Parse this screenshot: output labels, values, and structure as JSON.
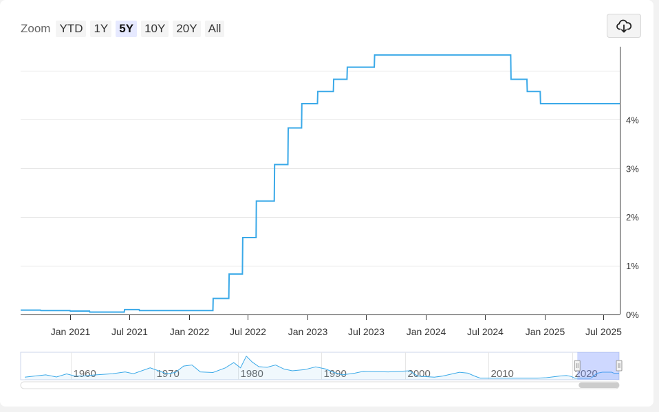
{
  "toolbar": {
    "zoom_label": "Zoom",
    "zoom_options": [
      "YTD",
      "1Y",
      "5Y",
      "10Y",
      "20Y",
      "All"
    ],
    "active_zoom": "5Y",
    "download_icon": "cloud-download-icon"
  },
  "chart_data": {
    "type": "line",
    "title": "",
    "xlabel": "",
    "ylabel": "",
    "x_tick_labels": [
      "Jan 2021",
      "Jul 2021",
      "Jan 2022",
      "Jul 2022",
      "Jan 2023",
      "Jul 2023",
      "Jan 2024",
      "Jul 2024",
      "Jan 2025",
      "Jul 2025"
    ],
    "y_tick_labels": [
      "0%",
      "1%",
      "2%",
      "3%",
      "4%"
    ],
    "ylim": [
      0,
      5.5
    ],
    "xlim": [
      "2020-08-01",
      "2025-08-20"
    ],
    "grid": true,
    "y_axis_side": "right",
    "line_color": "#3aa9e8",
    "series": [
      {
        "name": "",
        "points": [
          [
            "2020-08-01",
            0.09
          ],
          [
            "2020-10-01",
            0.09
          ],
          [
            "2020-10-02",
            0.08
          ],
          [
            "2020-12-31",
            0.08
          ],
          [
            "2021-01-01",
            0.07
          ],
          [
            "2021-03-01",
            0.07
          ],
          [
            "2021-03-02",
            0.05
          ],
          [
            "2021-06-16",
            0.05
          ],
          [
            "2021-06-17",
            0.1
          ],
          [
            "2021-08-01",
            0.1
          ],
          [
            "2021-08-02",
            0.08
          ],
          [
            "2022-03-16",
            0.08
          ],
          [
            "2022-03-17",
            0.33
          ],
          [
            "2022-05-04",
            0.33
          ],
          [
            "2022-05-05",
            0.83
          ],
          [
            "2022-06-15",
            0.83
          ],
          [
            "2022-06-16",
            1.58
          ],
          [
            "2022-07-27",
            1.58
          ],
          [
            "2022-07-28",
            2.33
          ],
          [
            "2022-09-21",
            2.33
          ],
          [
            "2022-09-22",
            3.08
          ],
          [
            "2022-11-02",
            3.08
          ],
          [
            "2022-11-03",
            3.83
          ],
          [
            "2022-12-14",
            3.83
          ],
          [
            "2022-12-15",
            4.33
          ],
          [
            "2023-02-01",
            4.33
          ],
          [
            "2023-02-02",
            4.58
          ],
          [
            "2023-03-22",
            4.58
          ],
          [
            "2023-03-23",
            4.83
          ],
          [
            "2023-05-03",
            4.83
          ],
          [
            "2023-05-04",
            5.08
          ],
          [
            "2023-07-26",
            5.08
          ],
          [
            "2023-07-27",
            5.33
          ],
          [
            "2024-09-18",
            5.33
          ],
          [
            "2024-09-19",
            4.83
          ],
          [
            "2024-11-07",
            4.83
          ],
          [
            "2024-11-08",
            4.58
          ],
          [
            "2024-12-18",
            4.58
          ],
          [
            "2024-12-19",
            4.33
          ],
          [
            "2025-08-20",
            4.33
          ]
        ]
      }
    ]
  },
  "navigator": {
    "year_labels": [
      "1960",
      "1970",
      "1980",
      "1990",
      "2000",
      "2010",
      "2020"
    ],
    "range_start_year": 1954,
    "range_end_year": 2025.6,
    "selected_start_year": 2020.6,
    "selected_end_year": 2025.6,
    "series": [
      [
        1954.5,
        1.0
      ],
      [
        1955.5,
        1.8
      ],
      [
        1957,
        3.0
      ],
      [
        1958.3,
        1.2
      ],
      [
        1959.5,
        3.8
      ],
      [
        1960.5,
        2.0
      ],
      [
        1961.5,
        2.0
      ],
      [
        1963,
        3.0
      ],
      [
        1965,
        4.0
      ],
      [
        1966.5,
        5.5
      ],
      [
        1967.5,
        4.0
      ],
      [
        1969.5,
        9.0
      ],
      [
        1970.5,
        6.5
      ],
      [
        1971.5,
        4.0
      ],
      [
        1972.5,
        5.0
      ],
      [
        1973.5,
        10.5
      ],
      [
        1974.5,
        11.5
      ],
      [
        1975.5,
        5.5
      ],
      [
        1977,
        5.0
      ],
      [
        1978.5,
        9.0
      ],
      [
        1979.5,
        13.5
      ],
      [
        1980.3,
        9.0
      ],
      [
        1981,
        19.0
      ],
      [
        1981.7,
        14.0
      ],
      [
        1982.5,
        10.0
      ],
      [
        1983.5,
        9.5
      ],
      [
        1984.5,
        11.5
      ],
      [
        1985.5,
        8.0
      ],
      [
        1986.5,
        6.5
      ],
      [
        1988,
        7.5
      ],
      [
        1989.3,
        9.8
      ],
      [
        1990.5,
        8.0
      ],
      [
        1991.5,
        5.0
      ],
      [
        1992.5,
        3.0
      ],
      [
        1994,
        4.5
      ],
      [
        1995,
        6.0
      ],
      [
        1998,
        5.5
      ],
      [
        2000.5,
        6.5
      ],
      [
        2001.5,
        2.0
      ],
      [
        2002.5,
        1.5
      ],
      [
        2003.5,
        1.0
      ],
      [
        2004.5,
        2.0
      ],
      [
        2006.5,
        5.25
      ],
      [
        2007.5,
        4.5
      ],
      [
        2008.3,
        2.0
      ],
      [
        2009,
        0.15
      ],
      [
        2015.8,
        0.15
      ],
      [
        2016.9,
        0.6
      ],
      [
        2018.5,
        2.0
      ],
      [
        2019.3,
        2.4
      ],
      [
        2019.9,
        1.6
      ],
      [
        2020.3,
        0.1
      ],
      [
        2022.2,
        0.1
      ],
      [
        2022.5,
        1.6
      ],
      [
        2022.9,
        4.3
      ],
      [
        2023.6,
        5.3
      ],
      [
        2024.7,
        5.3
      ],
      [
        2025.0,
        4.33
      ],
      [
        2025.6,
        4.33
      ]
    ]
  }
}
